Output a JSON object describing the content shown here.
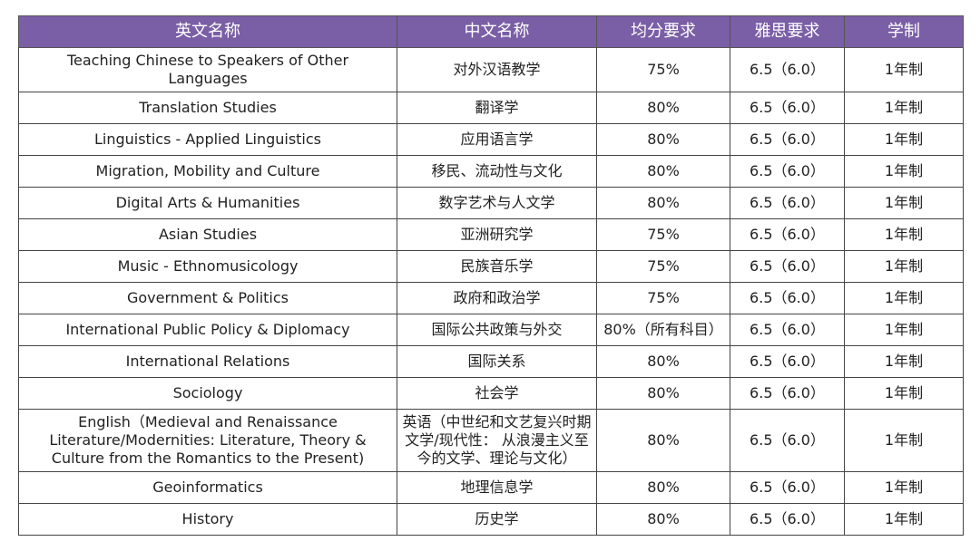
{
  "table": {
    "header": [
      "英文名称",
      "中文名称",
      "均分要求",
      "雅思要求",
      "学制"
    ],
    "rows": [
      [
        "Teaching Chinese to Speakers of Other Languages",
        "对外汉语教学",
        "75%",
        "6.5（6.0）",
        "1年制"
      ],
      [
        "Translation Studies",
        "翻译学",
        "80%",
        "6.5（6.0）",
        "1年制"
      ],
      [
        "Linguistics - Applied Linguistics",
        "应用语言学",
        "80%",
        "6.5（6.0）",
        "1年制"
      ],
      [
        "Migration, Mobility and Culture",
        "移民、流动性与文化",
        "80%",
        "6.5（6.0）",
        "1年制"
      ],
      [
        "Digital Arts & Humanities",
        "数字艺术与人文学",
        "80%",
        "6.5（6.0）",
        "1年制"
      ],
      [
        "Asian Studies",
        "亚洲研究学",
        "75%",
        "6.5（6.0）",
        "1年制"
      ],
      [
        "Music - Ethnomusicology",
        "民族音乐学",
        "75%",
        "6.5（6.0）",
        "1年制"
      ],
      [
        "Government & Politics",
        "政府和政治学",
        "75%",
        "6.5（6.0）",
        "1年制"
      ],
      [
        "International Public Policy & Diplomacy",
        "国际公共政策与外交",
        "80%（所有科目）",
        "6.5（6.0）",
        "1年制"
      ],
      [
        "International Relations",
        "国际关系",
        "80%",
        "6.5（6.0）",
        "1年制"
      ],
      [
        "Sociology",
        "社会学",
        "80%",
        "6.5（6.0）",
        "1年制"
      ],
      [
        "English（Medieval and Renaissance Literature/Modernities: Literature, Theory & Culture from the Romantics to the Present)",
        "英语（中世纪和文艺复兴时期文学/现代性： 从浪漫主义至今的文学、理论与文化）",
        "80%",
        "6.5（6.0）",
        "1年制"
      ],
      [
        "Geoinformatics",
        "地理信息学",
        "80%",
        "6.5（6.0）",
        "1年制"
      ],
      [
        "History",
        "历史学",
        "80%",
        "6.5（6.0）",
        "1年制"
      ]
    ]
  }
}
